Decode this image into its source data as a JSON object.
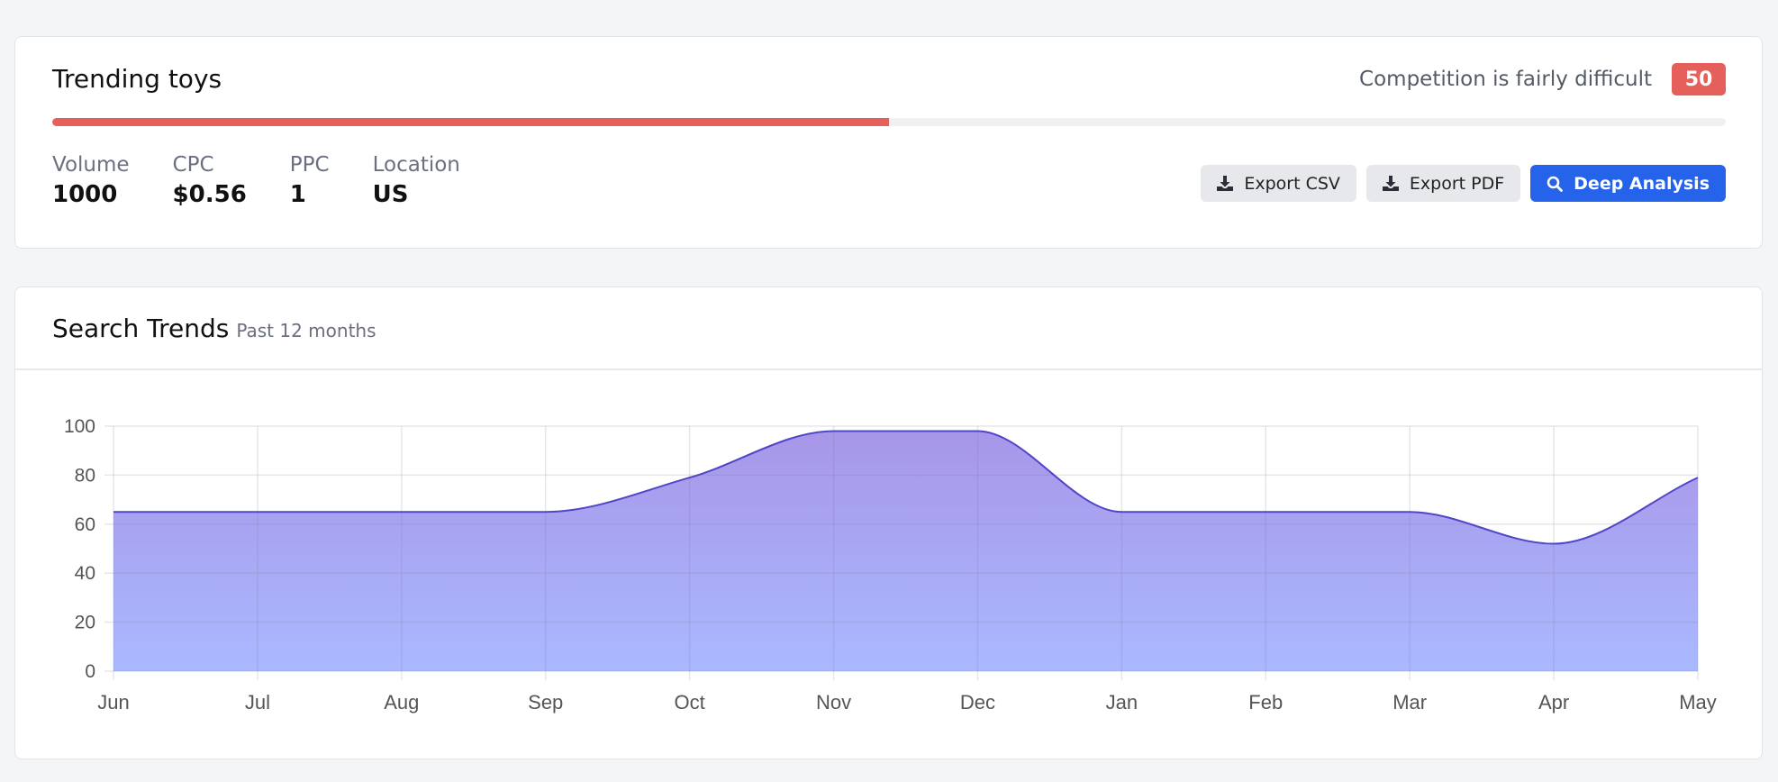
{
  "keyword": {
    "title": "Trending toys",
    "competition_text": "Competition is fairly difficult",
    "difficulty": "50",
    "difficulty_fraction": 0.5,
    "colors": {
      "accent": "#e5605a",
      "primary": "#2563eb"
    }
  },
  "stats": [
    {
      "label": "Volume",
      "value": "1000"
    },
    {
      "label": "CPC",
      "value": "$0.56"
    },
    {
      "label": "PPC",
      "value": "1"
    },
    {
      "label": "Location",
      "value": "US"
    }
  ],
  "actions": {
    "export_csv": {
      "label": "Export CSV",
      "icon": "download-icon"
    },
    "export_pdf": {
      "label": "Export PDF",
      "icon": "download-icon"
    },
    "deep_analysis": {
      "label": "Deep Analysis",
      "icon": "search-icon"
    }
  },
  "trends": {
    "title": "Search Trends",
    "subtitle": "Past 12 months"
  },
  "chart_data": {
    "type": "area",
    "categories": [
      "Jun",
      "Jul",
      "Aug",
      "Sep",
      "Oct",
      "Nov",
      "Dec",
      "Jan",
      "Feb",
      "Mar",
      "Apr",
      "May"
    ],
    "series": [
      {
        "values": [
          65,
          65,
          65,
          65,
          79,
          98,
          98,
          65,
          65,
          65,
          52,
          79
        ]
      }
    ],
    "ylim": [
      0,
      100
    ],
    "yticks": [
      0,
      20,
      40,
      60,
      80,
      100
    ],
    "grid": true,
    "colors": {
      "line": "#4f46c8",
      "fill_top": "#a896e8",
      "fill_bottom": "#a9b9ff"
    }
  }
}
